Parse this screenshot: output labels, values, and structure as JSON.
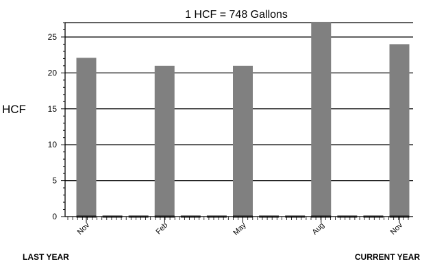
{
  "chart_data": {
    "type": "bar",
    "title": "1 HCF = 748 Gallons",
    "ylabel": "HCF",
    "xlabel": "",
    "ylim": [
      0,
      27
    ],
    "yticks": [
      0,
      5,
      10,
      15,
      20,
      25
    ],
    "grid": true,
    "categories": [
      "Nov",
      "Feb",
      "May",
      "Aug",
      "Nov"
    ],
    "values": [
      22.1,
      21,
      21,
      27.1,
      24
    ],
    "bar_color": "#808080",
    "baseline_color": "#000000"
  },
  "footer": {
    "left": "LAST YEAR",
    "right": "CURRENT YEAR"
  }
}
